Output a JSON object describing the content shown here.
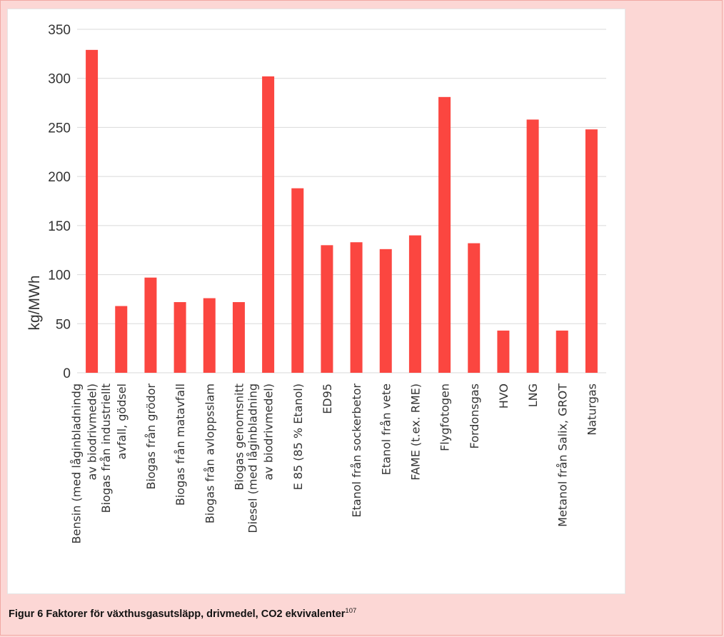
{
  "caption": {
    "text": "Figur 6 Faktorer för växthusgasutsläpp, drivmedel, CO2 ekvivalenter",
    "footnote": "107"
  },
  "colors": {
    "bar": "#fb4640",
    "background": "#fcd7d5",
    "panel": "#ffffff",
    "grid": "#d9d9d9"
  },
  "chart_data": {
    "type": "bar",
    "ylabel": "kg/MWh",
    "ylim": [
      0,
      350
    ],
    "yticks": [
      0,
      50,
      100,
      150,
      200,
      250,
      300,
      350
    ],
    "grid": true,
    "legend": "none",
    "categories": [
      [
        "Bensin (med låginbladnindg",
        "av biodrivmedel)"
      ],
      [
        "Biogas från industriellt",
        "avfall, gödsel"
      ],
      [
        "Biogas från grödor"
      ],
      [
        "Biogas från matavfall"
      ],
      [
        "Biogas från avloppsslam"
      ],
      [
        "Biogas genomsnitt"
      ],
      [
        "Diesel (med låginbladning",
        "av biodrivmedel)"
      ],
      [
        "E 85 (85 % Etanol)"
      ],
      [
        "ED95"
      ],
      [
        "Etanol från sockerbetor"
      ],
      [
        "Etanol från vete"
      ],
      [
        "FAME (t.ex. RME)"
      ],
      [
        "Flygfotogen"
      ],
      [
        "Fordonsgas"
      ],
      [
        "HVO"
      ],
      [
        "LNG"
      ],
      [
        "Metanol från Salix, GROT"
      ],
      [
        "Naturgas"
      ]
    ],
    "values": [
      329,
      68,
      97,
      72,
      76,
      72,
      302,
      188,
      130,
      133,
      126,
      140,
      281,
      132,
      43,
      258,
      43,
      248
    ]
  }
}
